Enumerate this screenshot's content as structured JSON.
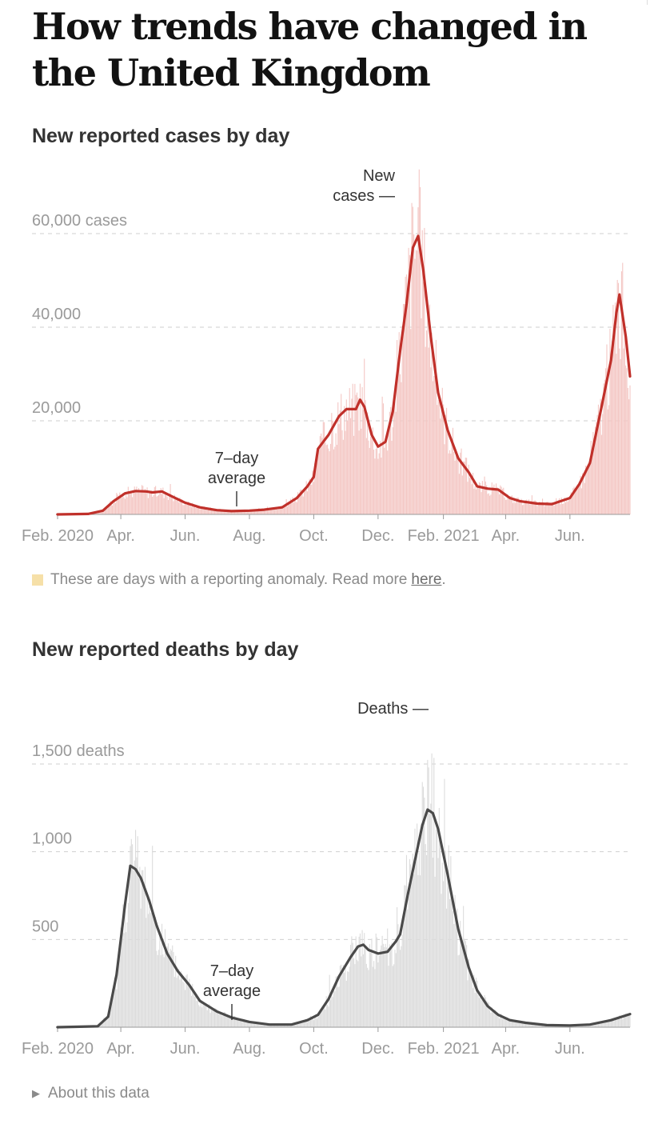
{
  "page": {
    "title": "How trends have changed in the United Kingdom"
  },
  "cases": {
    "title": "New reported cases by day",
    "legend_text": "These are days with a reporting anomaly. Read more",
    "legend_link": "here",
    "legend_period": ".",
    "colors": {
      "line": "#c0302a",
      "bars": "#f4c7c4"
    }
  },
  "deaths": {
    "title": "New reported deaths by day",
    "colors": {
      "line": "#4a4a4a",
      "bars": "#dcdcdc"
    }
  },
  "about": {
    "label": "About this data",
    "icon": "triangle-right-icon"
  },
  "chart_data": [
    {
      "type": "line",
      "title": "New reported cases by day",
      "y_unit_label": "cases",
      "ylim": [
        0,
        60000
      ],
      "yticks": [
        {
          "value": 60000,
          "label": "60,000 cases"
        },
        {
          "value": 40000,
          "label": "40,000"
        },
        {
          "value": 20000,
          "label": "20,000"
        }
      ],
      "xticks": [
        "Feb. 2020",
        "Apr.",
        "Jun.",
        "Aug.",
        "Oct.",
        "Dec.",
        "Feb. 2021",
        "Apr.",
        "Jun."
      ],
      "grid": true,
      "annotations": {
        "series_label": [
          "New",
          "cases —"
        ],
        "average_label": [
          "7–day",
          "average"
        ]
      },
      "series": [
        {
          "name": "7-day average",
          "points": [
            [
              "2020-02-01",
              0
            ],
            [
              "2020-03-01",
              100
            ],
            [
              "2020-03-15",
              800
            ],
            [
              "2020-03-25",
              2800
            ],
            [
              "2020-04-05",
              4500
            ],
            [
              "2020-04-15",
              5000
            ],
            [
              "2020-04-25",
              4900
            ],
            [
              "2020-05-01",
              4700
            ],
            [
              "2020-05-10",
              4900
            ],
            [
              "2020-05-20",
              3800
            ],
            [
              "2020-06-01",
              2500
            ],
            [
              "2020-06-15",
              1500
            ],
            [
              "2020-07-01",
              900
            ],
            [
              "2020-07-15",
              700
            ],
            [
              "2020-08-01",
              800
            ],
            [
              "2020-08-15",
              1000
            ],
            [
              "2020-09-01",
              1500
            ],
            [
              "2020-09-15",
              3500
            ],
            [
              "2020-09-25",
              6000
            ],
            [
              "2020-10-01",
              8000
            ],
            [
              "2020-10-05",
              14000
            ],
            [
              "2020-10-10",
              15500
            ],
            [
              "2020-10-15",
              17000
            ],
            [
              "2020-10-25",
              21000
            ],
            [
              "2020-11-01",
              22500
            ],
            [
              "2020-11-10",
              22500
            ],
            [
              "2020-11-14",
              24500
            ],
            [
              "2020-11-18",
              23000
            ],
            [
              "2020-11-25",
              17000
            ],
            [
              "2020-12-01",
              14500
            ],
            [
              "2020-12-08",
              15500
            ],
            [
              "2020-12-15",
              22000
            ],
            [
              "2020-12-22",
              35000
            ],
            [
              "2020-12-28",
              45000
            ],
            [
              "2021-01-03",
              57000
            ],
            [
              "2021-01-08",
              59500
            ],
            [
              "2021-01-13",
              52000
            ],
            [
              "2021-01-20",
              38000
            ],
            [
              "2021-01-27",
              26000
            ],
            [
              "2021-02-05",
              18000
            ],
            [
              "2021-02-15",
              12000
            ],
            [
              "2021-02-25",
              9000
            ],
            [
              "2021-03-05",
              6000
            ],
            [
              "2021-03-15",
              5500
            ],
            [
              "2021-03-25",
              5300
            ],
            [
              "2021-04-05",
              3500
            ],
            [
              "2021-04-15",
              2800
            ],
            [
              "2021-05-01",
              2300
            ],
            [
              "2021-05-15",
              2200
            ],
            [
              "2021-06-01",
              3500
            ],
            [
              "2021-06-10",
              6500
            ],
            [
              "2021-06-20",
              11000
            ],
            [
              "2021-07-01",
              23000
            ],
            [
              "2021-07-10",
              33000
            ],
            [
              "2021-07-15",
              43000
            ],
            [
              "2021-07-18",
              47000
            ],
            [
              "2021-07-24",
              38000
            ],
            [
              "2021-07-28",
              29500
            ]
          ]
        }
      ]
    },
    {
      "type": "line",
      "title": "New reported deaths by day",
      "y_unit_label": "deaths",
      "ylim": [
        0,
        1500
      ],
      "yticks": [
        {
          "value": 1500,
          "label": "1,500 deaths"
        },
        {
          "value": 1000,
          "label": "1,000"
        },
        {
          "value": 500,
          "label": "500"
        }
      ],
      "xticks": [
        "Feb. 2020",
        "Apr.",
        "Jun.",
        "Aug.",
        "Oct.",
        "Dec.",
        "Feb. 2021",
        "Apr.",
        "Jun."
      ],
      "grid": true,
      "annotations": {
        "series_label": [
          "Deaths —"
        ],
        "average_label": [
          "7–day",
          "average"
        ]
      },
      "series": [
        {
          "name": "7-day average",
          "points": [
            [
              "2020-02-01",
              0
            ],
            [
              "2020-03-10",
              5
            ],
            [
              "2020-03-20",
              60
            ],
            [
              "2020-03-28",
              300
            ],
            [
              "2020-04-05",
              700
            ],
            [
              "2020-04-10",
              920
            ],
            [
              "2020-04-15",
              900
            ],
            [
              "2020-04-20",
              850
            ],
            [
              "2020-04-28",
              720
            ],
            [
              "2020-05-05",
              580
            ],
            [
              "2020-05-15",
              420
            ],
            [
              "2020-05-25",
              320
            ],
            [
              "2020-06-05",
              240
            ],
            [
              "2020-06-15",
              150
            ],
            [
              "2020-07-01",
              90
            ],
            [
              "2020-07-15",
              55
            ],
            [
              "2020-08-01",
              30
            ],
            [
              "2020-08-20",
              15
            ],
            [
              "2020-09-10",
              15
            ],
            [
              "2020-09-25",
              40
            ],
            [
              "2020-10-05",
              70
            ],
            [
              "2020-10-15",
              160
            ],
            [
              "2020-10-25",
              290
            ],
            [
              "2020-11-05",
              400
            ],
            [
              "2020-11-12",
              460
            ],
            [
              "2020-11-17",
              470
            ],
            [
              "2020-11-22",
              440
            ],
            [
              "2020-12-01",
              420
            ],
            [
              "2020-12-10",
              430
            ],
            [
              "2020-12-18",
              490
            ],
            [
              "2020-12-22",
              530
            ],
            [
              "2020-12-29",
              750
            ],
            [
              "2021-01-05",
              950
            ],
            [
              "2021-01-12",
              1150
            ],
            [
              "2021-01-17",
              1240
            ],
            [
              "2021-01-22",
              1220
            ],
            [
              "2021-01-27",
              1130
            ],
            [
              "2021-02-05",
              870
            ],
            [
              "2021-02-15",
              560
            ],
            [
              "2021-02-25",
              340
            ],
            [
              "2021-03-05",
              210
            ],
            [
              "2021-03-15",
              120
            ],
            [
              "2021-03-25",
              70
            ],
            [
              "2021-04-05",
              40
            ],
            [
              "2021-04-20",
              25
            ],
            [
              "2021-05-10",
              12
            ],
            [
              "2021-06-01",
              10
            ],
            [
              "2021-06-20",
              15
            ],
            [
              "2021-07-10",
              40
            ],
            [
              "2021-07-28",
              75
            ]
          ]
        }
      ]
    }
  ]
}
